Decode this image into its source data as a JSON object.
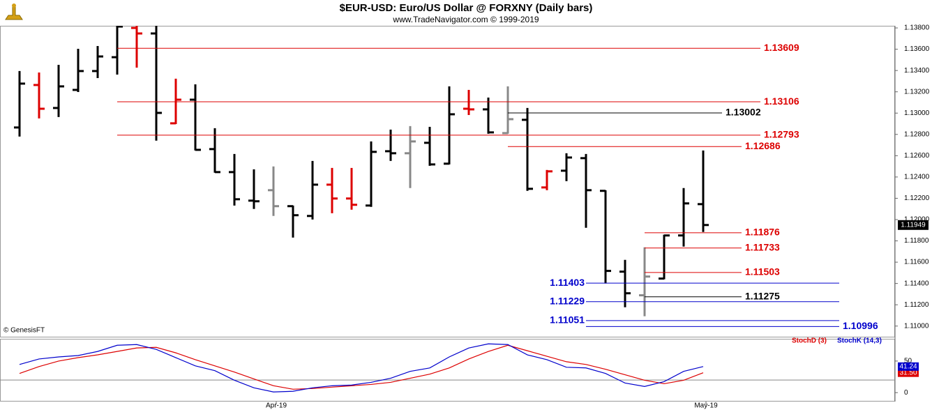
{
  "chart_data": [
    {
      "type": "ohlc",
      "title": "$EUR-USD:  Euro/US Dollar @ FORXNY  (Daily bars)",
      "subtitle": "www.TradeNavigator.com © 1999-2019",
      "watermark": "© GenesisFT",
      "open": [
        1.12865,
        1.13264,
        1.13048,
        1.13218,
        1.13395,
        1.13525,
        1.138,
        1.13748,
        1.12904,
        1.13126,
        1.12662,
        1.12446,
        1.12178,
        1.12276,
        1.12126,
        1.12034,
        1.12328,
        1.12198,
        1.12132,
        1.12642,
        1.12623,
        1.12721,
        1.12525,
        1.13041,
        1.13035,
        1.12812,
        1.12937,
        1.12302,
        1.12459,
        1.12577,
        1.1227,
        1.11511,
        1.11289,
        1.11446,
        1.11851,
        1.12145
      ],
      "high": [
        1.13395,
        1.13381,
        1.13453,
        1.13604,
        1.1363,
        1.1382,
        1.1382,
        1.1382,
        1.13323,
        1.1327,
        1.12858,
        1.12616,
        1.12472,
        1.12499,
        1.12132,
        1.12551,
        1.12485,
        1.12485,
        1.12734,
        1.12845,
        1.12878,
        1.12871,
        1.13251,
        1.13218,
        1.13146,
        1.13251,
        1.13048,
        1.12466,
        1.12623,
        1.12616,
        1.12276,
        1.11622,
        1.1174,
        1.11858,
        1.12296,
        1.12649
      ],
      "low": [
        1.1278,
        1.1295,
        1.12963,
        1.13198,
        1.13329,
        1.13362,
        1.13427,
        1.12741,
        1.12897,
        1.12649,
        1.1244,
        1.12132,
        1.121,
        1.12034,
        1.11831,
        1.12001,
        1.1206,
        1.12093,
        1.12119,
        1.12551,
        1.12296,
        1.12505,
        1.12518,
        1.12982,
        1.12806,
        1.12806,
        1.1227,
        1.12276,
        1.12361,
        1.11923,
        1.114,
        1.11177,
        1.11092,
        1.11439,
        1.11746,
        1.11884
      ],
      "close": [
        1.13277,
        1.13041,
        1.13251,
        1.13395,
        1.13532,
        1.13813,
        1.13748,
        1.13002,
        1.13126,
        1.12655,
        1.12446,
        1.12191,
        1.12172,
        1.12126,
        1.12041,
        1.12328,
        1.12198,
        1.12139,
        1.12636,
        1.12623,
        1.12734,
        1.12518,
        1.12989,
        1.13035,
        1.12819,
        1.12943,
        1.12289,
        1.12453,
        1.12583,
        1.12276,
        1.11518,
        1.11308,
        1.11465,
        1.11851,
        1.12152,
        1.11949
      ],
      "bar_colors": [
        "#000000",
        "#dd0000",
        "#000000",
        "#000000",
        "#000000",
        "#000000",
        "#dd0000",
        "#000000",
        "#dd0000",
        "#000000",
        "#000000",
        "#000000",
        "#000000",
        "#888888",
        "#000000",
        "#000000",
        "#dd0000",
        "#dd0000",
        "#000000",
        "#000000",
        "#888888",
        "#000000",
        "#000000",
        "#dd0000",
        "#000000",
        "#888888",
        "#000000",
        "#dd0000",
        "#000000",
        "#000000",
        "#000000",
        "#000000",
        "#888888",
        "#000000",
        "#000000",
        "#000000"
      ],
      "ylim": [
        1.109,
        1.1382
      ],
      "yticks": [
        {
          "value": 1.11,
          "label": "1.11000"
        },
        {
          "value": 1.112,
          "label": "1.11200"
        },
        {
          "value": 1.114,
          "label": "1.11400"
        },
        {
          "value": 1.116,
          "label": "1.11600"
        },
        {
          "value": 1.118,
          "label": "1.11800"
        },
        {
          "value": 1.12,
          "label": "1.12000"
        },
        {
          "value": 1.122,
          "label": "1.12200"
        },
        {
          "value": 1.124,
          "label": "1.12400"
        },
        {
          "value": 1.126,
          "label": "1.12600"
        },
        {
          "value": 1.128,
          "label": "1.12800"
        },
        {
          "value": 1.13,
          "label": "1.13000"
        },
        {
          "value": 1.132,
          "label": "1.13200"
        },
        {
          "value": 1.134,
          "label": "1.13400"
        },
        {
          "value": 1.136,
          "label": "1.13600"
        },
        {
          "value": 1.138,
          "label": "1.13800"
        }
      ],
      "levels": [
        {
          "value": 1.13609,
          "color": "#dd0000"
        },
        {
          "value": 1.13106,
          "color": "#dd0000"
        },
        {
          "value": 1.13002,
          "color": "#000000"
        },
        {
          "value": 1.12793,
          "color": "#dd0000"
        },
        {
          "value": 1.12686,
          "color": "#dd0000"
        },
        {
          "value": 1.11876,
          "color": "#dd0000"
        },
        {
          "value": 1.11733,
          "color": "#dd0000"
        },
        {
          "value": 1.11503,
          "color": "#dd0000"
        },
        {
          "value": 1.11403,
          "color": "#0000cc"
        },
        {
          "value": 1.11275,
          "color": "#000000"
        },
        {
          "value": 1.11229,
          "color": "#0000cc"
        },
        {
          "value": 1.11051,
          "color": "#0000cc"
        },
        {
          "value": 1.10996,
          "color": "#0000cc"
        }
      ]
    },
    {
      "type": "line",
      "series": [
        {
          "name": "StochD (3)",
          "color": "#dd0000",
          "values": [
            30.4,
            41.3,
            50.0,
            55.4,
            59.8,
            65.2,
            70.7,
            71.7,
            63.0,
            52.2,
            42.4,
            32.6,
            21.7,
            10.9,
            5.4,
            6.5,
            8.7,
            10.9,
            13.0,
            16.3,
            22.8,
            29.3,
            39.1,
            53.3,
            65.2,
            75.0,
            66.3,
            57.6,
            48.9,
            44.6,
            37.0,
            28.3,
            19.6,
            14.1,
            19.6,
            31.5
          ],
          "value_labels": [
            null,
            null,
            null,
            null,
            null,
            null,
            null,
            null,
            null,
            null,
            null,
            null,
            null,
            null,
            null,
            null,
            null,
            null,
            null,
            null,
            null,
            null,
            null,
            null,
            null,
            null,
            null,
            null,
            null,
            null,
            null,
            null,
            null,
            null,
            null,
            "31.50"
          ]
        },
        {
          "name": "StochK (14,3)",
          "color": "#0000cc",
          "values": [
            44.6,
            53.3,
            56.5,
            58.7,
            65.2,
            75.0,
            76.1,
            68.5,
            55.4,
            42.4,
            34.8,
            19.6,
            7.6,
            1.1,
            2.2,
            7.6,
            10.9,
            12.0,
            16.3,
            22.8,
            33.7,
            39.1,
            56.5,
            70.7,
            77.2,
            76.1,
            59.8,
            52.2,
            40.2,
            39.1,
            30.4,
            15.2,
            9.8,
            17.4,
            33.7,
            41.24
          ]
        }
      ],
      "ylim": [
        -13,
        83
      ],
      "yticks": [
        0,
        50
      ],
      "reference_lines": [
        20
      ],
      "xticks": [
        {
          "value": 13,
          "label": "Apr-19"
        },
        {
          "value": 35,
          "label": "May-19"
        }
      ]
    }
  ]
}
